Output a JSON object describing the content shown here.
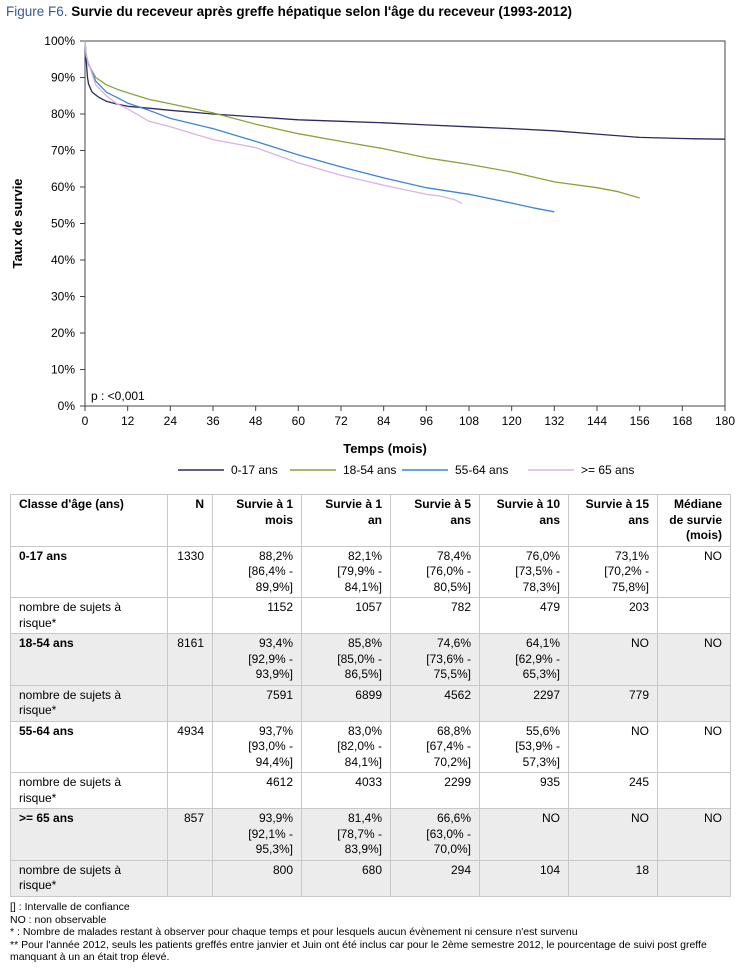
{
  "figure": {
    "id": "Figure F6.",
    "title": "Survie du receveur après greffe hépatique selon l'âge du receveur (1993-2012)"
  },
  "chart_data": {
    "type": "line",
    "title": "Survie du receveur après greffe hépatique selon l'âge du receveur (1993-2012)",
    "xlabel": "Temps (mois)",
    "ylabel": "Taux de survie",
    "xlim": [
      0,
      180
    ],
    "ylim": [
      0,
      100
    ],
    "x_ticks": [
      "0",
      "12",
      "24",
      "36",
      "48",
      "60",
      "72",
      "84",
      "96",
      "108",
      "120",
      "132",
      "144",
      "156",
      "168",
      "180"
    ],
    "y_ticks": [
      "0%",
      "10%",
      "20%",
      "30%",
      "40%",
      "50%",
      "60%",
      "70%",
      "80%",
      "90%",
      "100%"
    ],
    "annotation": "p : <0,001",
    "legend_position": "bottom",
    "grid": false,
    "series": [
      {
        "name": "0-17 ans",
        "color": "#2b2a63",
        "points": [
          [
            0,
            100
          ],
          [
            0.3,
            95
          ],
          [
            0.7,
            90
          ],
          [
            1,
            88.2
          ],
          [
            2,
            86
          ],
          [
            4,
            84.5
          ],
          [
            6,
            83.5
          ],
          [
            9,
            82.7
          ],
          [
            12,
            82.1
          ],
          [
            18,
            81.6
          ],
          [
            24,
            81
          ],
          [
            36,
            80
          ],
          [
            48,
            79.2
          ],
          [
            60,
            78.4
          ],
          [
            72,
            78
          ],
          [
            84,
            77.6
          ],
          [
            96,
            77
          ],
          [
            108,
            76.5
          ],
          [
            120,
            76
          ],
          [
            132,
            75.4
          ],
          [
            144,
            74.5
          ],
          [
            156,
            73.6
          ],
          [
            168,
            73.3
          ],
          [
            172,
            73.2
          ],
          [
            180,
            73.1
          ]
        ]
      },
      {
        "name": "18-54 ans",
        "color": "#8aa23a",
        "points": [
          [
            0,
            100
          ],
          [
            0.3,
            96.5
          ],
          [
            1,
            93.4
          ],
          [
            3,
            90
          ],
          [
            6,
            88
          ],
          [
            9,
            86.8
          ],
          [
            12,
            85.8
          ],
          [
            18,
            84
          ],
          [
            24,
            82.8
          ],
          [
            36,
            80.3
          ],
          [
            48,
            77.2
          ],
          [
            60,
            74.6
          ],
          [
            72,
            72.5
          ],
          [
            84,
            70.5
          ],
          [
            96,
            68
          ],
          [
            108,
            66.2
          ],
          [
            120,
            64.1
          ],
          [
            132,
            61.4
          ],
          [
            144,
            59.8
          ],
          [
            150,
            58.7
          ],
          [
            156,
            57
          ]
        ]
      },
      {
        "name": "55-64 ans",
        "color": "#3d85d4",
        "points": [
          [
            0,
            100
          ],
          [
            0.3,
            96
          ],
          [
            1,
            93.7
          ],
          [
            3,
            89
          ],
          [
            6,
            86
          ],
          [
            9,
            84.5
          ],
          [
            12,
            83
          ],
          [
            18,
            81
          ],
          [
            24,
            78.8
          ],
          [
            36,
            76
          ],
          [
            48,
            72.5
          ],
          [
            60,
            68.8
          ],
          [
            72,
            65.5
          ],
          [
            84,
            62.5
          ],
          [
            96,
            59.8
          ],
          [
            108,
            58
          ],
          [
            120,
            55.6
          ],
          [
            126,
            54.3
          ],
          [
            132,
            53.2
          ]
        ]
      },
      {
        "name": ">= 65 ans",
        "color": "#d8b3e8",
        "points": [
          [
            0,
            100
          ],
          [
            0.3,
            96
          ],
          [
            1,
            93.9
          ],
          [
            3,
            88
          ],
          [
            6,
            85
          ],
          [
            9,
            82.8
          ],
          [
            12,
            81.4
          ],
          [
            18,
            78
          ],
          [
            24,
            76.5
          ],
          [
            36,
            73
          ],
          [
            48,
            70.8
          ],
          [
            60,
            66.6
          ],
          [
            72,
            63.2
          ],
          [
            84,
            60.5
          ],
          [
            96,
            58
          ],
          [
            100,
            57.5
          ],
          [
            104,
            56.5
          ],
          [
            106,
            55.5
          ]
        ]
      }
    ]
  },
  "table": {
    "headers": [
      "Classe d'âge (ans)",
      "N",
      "Survie à 1 mois",
      "Survie à 1 an",
      "Survie à 5 ans",
      "Survie à 10 ans",
      "Survie à 15 ans",
      "Médiane de survie (mois)"
    ],
    "rows": [
      {
        "cells": [
          "0-17 ans",
          "1330",
          "88,2% [86,4% - 89,9%]",
          "82,1% [79,9% - 84,1%]",
          "78,4% [76,0% - 80,5%]",
          "76,0% [73,5% - 78,3%]",
          "73,1% [70,2% - 75,8%]",
          "NO"
        ]
      },
      {
        "cells": [
          "nombre de sujets à risque*",
          "",
          "1152",
          "1057",
          "782",
          "479",
          "203",
          ""
        ]
      },
      {
        "cells": [
          "18-54 ans",
          "8161",
          "93,4% [92,9% - 93,9%]",
          "85,8% [85,0% - 86,5%]",
          "74,6% [73,6% - 75,5%]",
          "64,1% [62,9% - 65,3%]",
          "NO",
          "NO"
        ]
      },
      {
        "cells": [
          "nombre de sujets à risque*",
          "",
          "7591",
          "6899",
          "4562",
          "2297",
          "779",
          ""
        ]
      },
      {
        "cells": [
          "55-64 ans",
          "4934",
          "93,7% [93,0% - 94,4%]",
          "83,0% [82,0% - 84,1%]",
          "68,8% [67,4% - 70,2%]",
          "55,6% [53,9% - 57,3%]",
          "NO",
          "NO"
        ]
      },
      {
        "cells": [
          "nombre de sujets à risque*",
          "",
          "4612",
          "4033",
          "2299",
          "935",
          "245",
          ""
        ]
      },
      {
        "cells": [
          ">= 65 ans",
          "857",
          "93,9% [92,1% - 95,3%]",
          "81,4% [78,7% - 83,9%]",
          "66,6% [63,0% - 70,0%]",
          "NO",
          "NO",
          "NO"
        ]
      },
      {
        "cells": [
          "nombre de sujets à risque*",
          "",
          "800",
          "680",
          "294",
          "104",
          "18",
          ""
        ]
      }
    ]
  },
  "notes": [
    "[] : Intervalle de confiance",
    "NO : non observable",
    "* : Nombre de malades restant à observer pour chaque temps et pour lesquels aucun évènement ni censure n'est survenu",
    "** Pour l'année 2012, seuls les patients greffés entre janvier et Juin ont été inclus car pour le 2ème semestre 2012, le pourcentage de suivi post greffe manquant à un an était trop élevé."
  ]
}
